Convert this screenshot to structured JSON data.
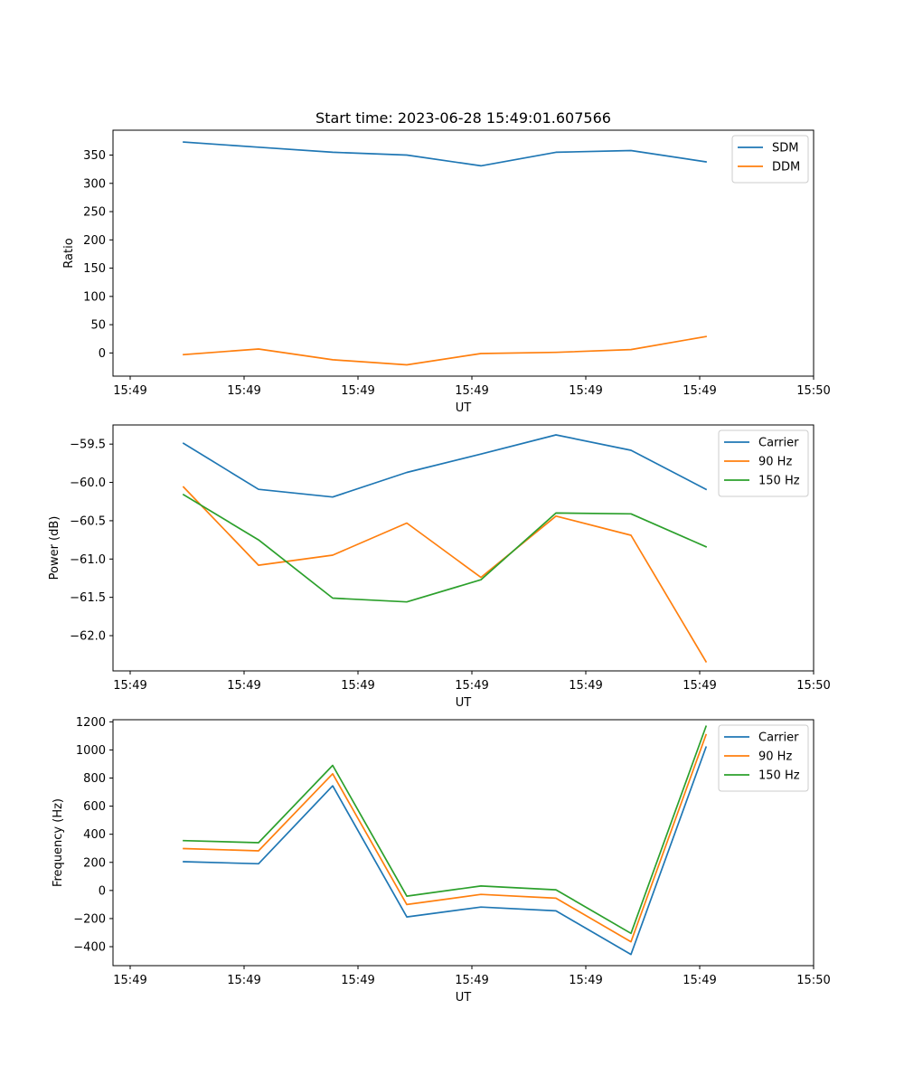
{
  "figure": {
    "title": "Start time: 2023-06-28 15:49:01.607566"
  },
  "chart_data": [
    {
      "type": "line",
      "xlabel": "UT",
      "ylabel": "Ratio",
      "x_tick_labels": [
        "15:49",
        "15:49",
        "15:49",
        "15:49",
        "15:49",
        "15:49",
        "15:50"
      ],
      "y_ticks": [
        0,
        50,
        100,
        150,
        200,
        250,
        300,
        350
      ],
      "y_tick_labels": [
        "0",
        "50",
        "100",
        "150",
        "200",
        "250",
        "300",
        "350"
      ],
      "ylim": [
        -41,
        394
      ],
      "grid": false,
      "legend_position": "top-right",
      "series": [
        {
          "name": "SDM",
          "color": "#1f77b4",
          "values": [
            373,
            364,
            355,
            350,
            331,
            355,
            358,
            338
          ]
        },
        {
          "name": "DDM",
          "color": "#ff7f0e",
          "values": [
            -3,
            7,
            -12,
            -21,
            -1,
            1,
            6,
            29
          ]
        }
      ]
    },
    {
      "type": "line",
      "xlabel": "UT",
      "ylabel": "Power (dB)",
      "x_tick_labels": [
        "15:49",
        "15:49",
        "15:49",
        "15:49",
        "15:49",
        "15:49",
        "15:50"
      ],
      "y_ticks": [
        -62.0,
        -61.5,
        -61.0,
        -60.5,
        -60.0,
        -59.5
      ],
      "y_tick_labels": [
        "−62.0",
        "−61.5",
        "−61.0",
        "−60.5",
        "−60.0",
        "−59.5"
      ],
      "ylim": [
        -62.46,
        -59.25
      ],
      "grid": false,
      "legend_position": "top-right",
      "series": [
        {
          "name": "Carrier",
          "color": "#1f77b4",
          "values": [
            -59.49,
            -60.09,
            -60.19,
            -59.87,
            -59.63,
            -59.38,
            -59.58,
            -60.09
          ]
        },
        {
          "name": "90 Hz",
          "color": "#ff7f0e",
          "values": [
            -60.06,
            -61.08,
            -60.95,
            -60.53,
            -61.24,
            -60.44,
            -60.69,
            -62.34
          ]
        },
        {
          "name": "150 Hz",
          "color": "#2ca02c",
          "values": [
            -60.16,
            -60.75,
            -61.51,
            -61.56,
            -61.27,
            -60.4,
            -60.41,
            -60.84
          ]
        }
      ]
    },
    {
      "type": "line",
      "xlabel": "UT",
      "ylabel": "Frequency (Hz)",
      "x_tick_labels": [
        "15:49",
        "15:49",
        "15:49",
        "15:49",
        "15:49",
        "15:49",
        "15:50"
      ],
      "y_ticks": [
        -400,
        -200,
        0,
        200,
        400,
        600,
        800,
        1000,
        1200
      ],
      "y_tick_labels": [
        "−400",
        "−200",
        "0",
        "200",
        "400",
        "600",
        "800",
        "1000",
        "1200"
      ],
      "ylim": [
        -535,
        1215
      ],
      "grid": false,
      "legend_position": "top-right",
      "series": [
        {
          "name": "Carrier",
          "color": "#1f77b4",
          "values": [
            205,
            190,
            745,
            -188,
            -118,
            -145,
            -455,
            1020
          ]
        },
        {
          "name": "90 Hz",
          "color": "#ff7f0e",
          "values": [
            298,
            282,
            830,
            -100,
            -28,
            -55,
            -365,
            1108
          ]
        },
        {
          "name": "150 Hz",
          "color": "#2ca02c",
          "values": [
            355,
            340,
            890,
            -40,
            32,
            5,
            -305,
            1168
          ]
        }
      ]
    }
  ]
}
